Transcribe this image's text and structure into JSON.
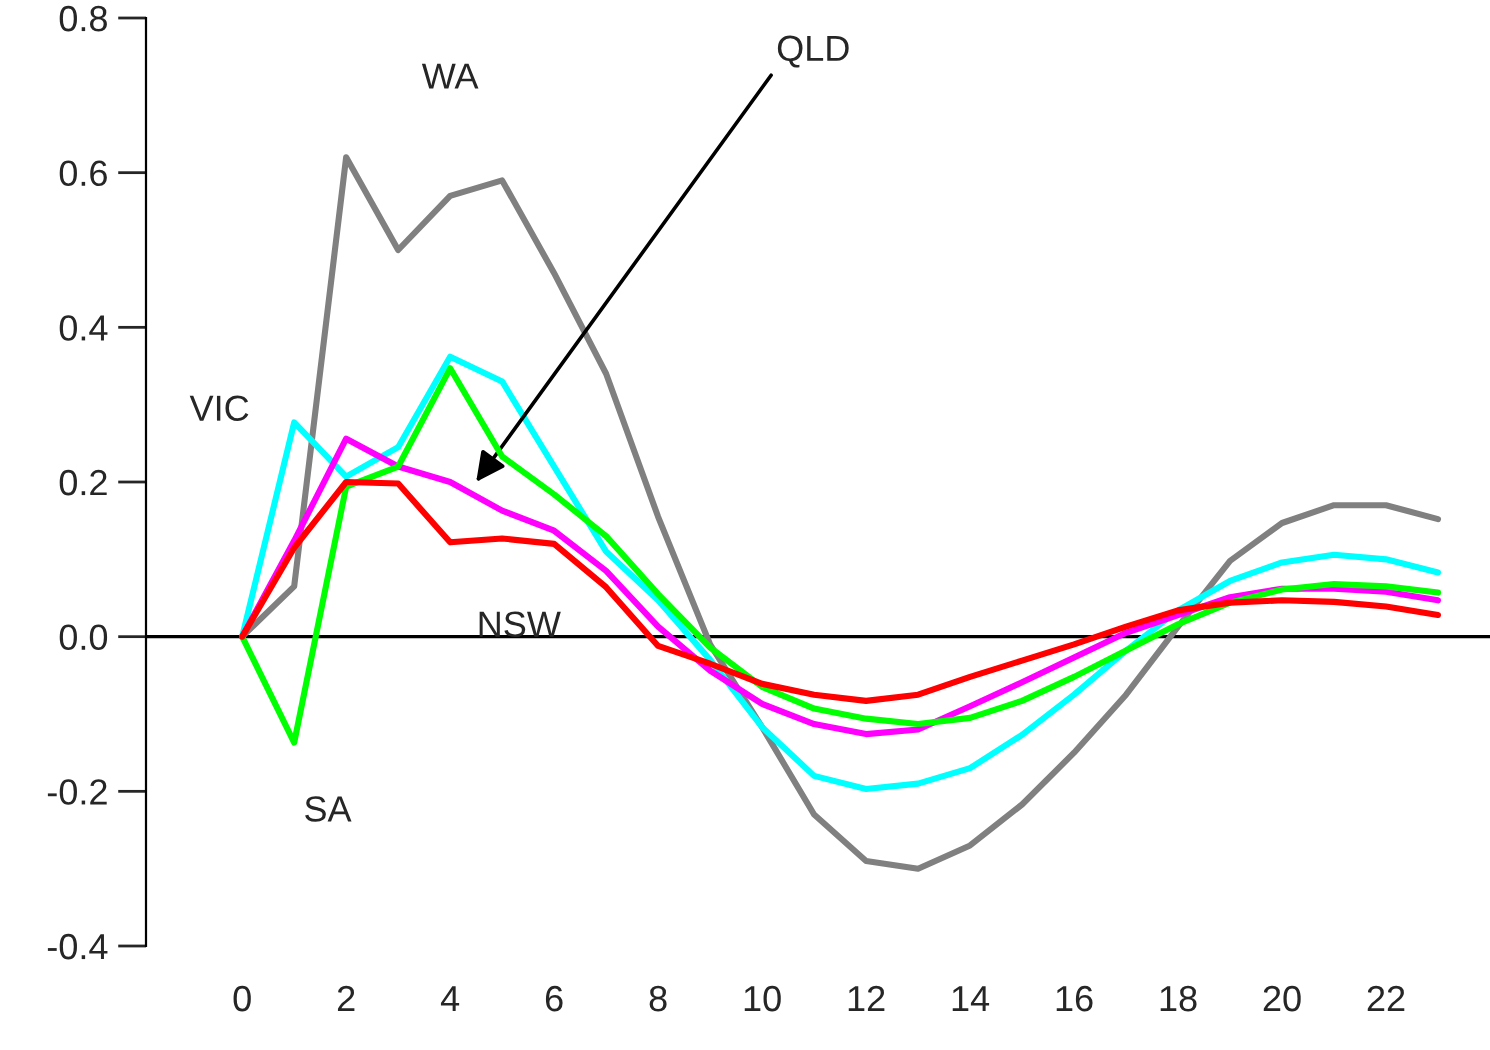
{
  "chart_data": {
    "type": "line",
    "x": [
      0,
      1,
      2,
      3,
      4,
      5,
      6,
      7,
      8,
      9,
      10,
      11,
      12,
      13,
      14,
      15,
      16,
      17,
      18,
      19,
      20,
      21,
      22,
      23
    ],
    "series": [
      {
        "name": "WA",
        "color": "#808080",
        "values": [
          0,
          0.065,
          0.62,
          0.5,
          0.57,
          0.59,
          0.47,
          0.34,
          0.155,
          -0.01,
          -0.117,
          -0.23,
          -0.29,
          -0.3,
          -0.27,
          -0.217,
          -0.15,
          -0.075,
          0.013,
          0.098,
          0.147,
          0.17,
          0.17,
          0.152
        ]
      },
      {
        "name": "VIC",
        "color": "#00ffff",
        "values": [
          0,
          0.277,
          0.207,
          0.245,
          0.362,
          0.33,
          0.22,
          0.11,
          0.047,
          -0.03,
          -0.117,
          -0.18,
          -0.197,
          -0.19,
          -0.17,
          -0.127,
          -0.075,
          -0.018,
          0.034,
          0.072,
          0.096,
          0.106,
          0.1,
          0.083
        ]
      },
      {
        "name": "QLD",
        "color": "#ff00ff",
        "values": [
          0,
          0.124,
          0.256,
          0.22,
          0.2,
          0.163,
          0.137,
          0.085,
          0.013,
          -0.044,
          -0.087,
          -0.113,
          -0.126,
          -0.12,
          -0.09,
          -0.059,
          -0.027,
          0.005,
          0.028,
          0.051,
          0.062,
          0.062,
          0.058,
          0.047
        ]
      },
      {
        "name": "SA",
        "color": "#00ff00",
        "values": [
          0,
          -0.137,
          0.194,
          0.22,
          0.347,
          0.233,
          0.184,
          0.13,
          0.055,
          -0.014,
          -0.065,
          -0.093,
          -0.106,
          -0.113,
          -0.105,
          -0.083,
          -0.052,
          -0.018,
          0.016,
          0.044,
          0.061,
          0.068,
          0.065,
          0.057
        ]
      },
      {
        "name": "NSW",
        "color": "#ff0000",
        "values": [
          0,
          0.115,
          0.2,
          0.198,
          0.122,
          0.127,
          0.12,
          0.064,
          -0.012,
          -0.035,
          -0.061,
          -0.075,
          -0.083,
          -0.075,
          -0.052,
          -0.031,
          -0.01,
          0.013,
          0.034,
          0.044,
          0.047,
          0.045,
          0.039,
          0.028
        ]
      }
    ],
    "xlim": [
      -1.85,
      24
    ],
    "xticks": [
      0,
      2,
      4,
      6,
      8,
      10,
      12,
      14,
      16,
      18,
      20,
      22
    ],
    "ylim": [
      -0.4,
      0.8
    ],
    "yticks": [
      {
        "value": -0.4,
        "label": "-0.4"
      },
      {
        "value": -0.2,
        "label": "-0.2"
      },
      {
        "value": 0.0,
        "label": "0.0"
      },
      {
        "value": 0.2,
        "label": "0.2"
      },
      {
        "value": 0.4,
        "label": "0.4"
      },
      {
        "value": 0.6,
        "label": "0.6"
      },
      {
        "value": 0.8,
        "label": "0.8"
      }
    ],
    "ref_lines": [
      {
        "axis": "y",
        "value": 0,
        "color": "#000000"
      }
    ],
    "grid": false,
    "legend": false,
    "marker": "none",
    "line_style": "solid"
  }
}
